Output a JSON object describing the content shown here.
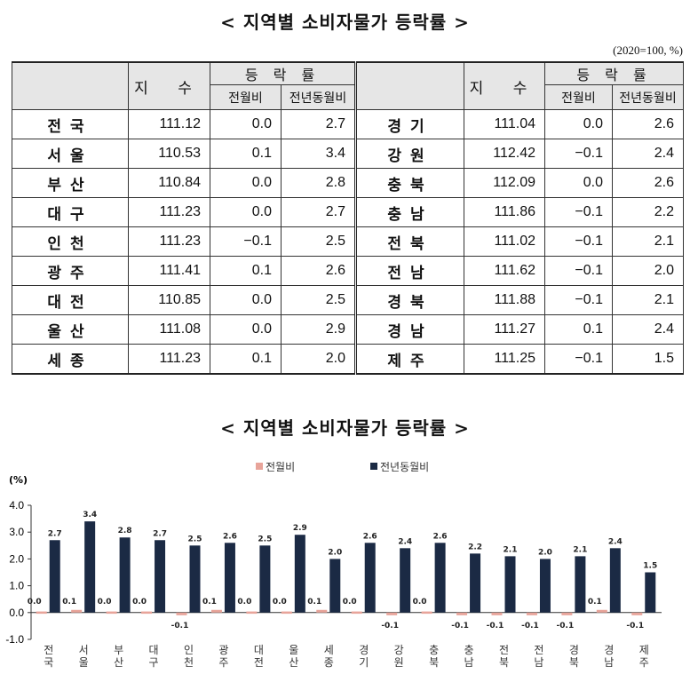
{
  "table_title": "< 지역별 소비자물가 등락률 >",
  "unit_note": "(2020=100, %)",
  "headers": {
    "index": "지 수",
    "change": "등 락 률",
    "mom": "전월비",
    "yoy": "전년동월비"
  },
  "left_rows": [
    {
      "region": "전국",
      "index": "111.12",
      "mom": "0.0",
      "yoy": "2.7"
    },
    {
      "region": "서울",
      "index": "110.53",
      "mom": "0.1",
      "yoy": "3.4"
    },
    {
      "region": "부산",
      "index": "110.84",
      "mom": "0.0",
      "yoy": "2.8"
    },
    {
      "region": "대구",
      "index": "111.23",
      "mom": "0.0",
      "yoy": "2.7"
    },
    {
      "region": "인천",
      "index": "111.23",
      "mom": "−0.1",
      "yoy": "2.5"
    },
    {
      "region": "광주",
      "index": "111.41",
      "mom": "0.1",
      "yoy": "2.6"
    },
    {
      "region": "대전",
      "index": "110.85",
      "mom": "0.0",
      "yoy": "2.5"
    },
    {
      "region": "울산",
      "index": "111.08",
      "mom": "0.0",
      "yoy": "2.9"
    },
    {
      "region": "세종",
      "index": "111.23",
      "mom": "0.1",
      "yoy": "2.0"
    }
  ],
  "right_rows": [
    {
      "region": "경기",
      "index": "111.04",
      "mom": "0.0",
      "yoy": "2.6"
    },
    {
      "region": "강원",
      "index": "112.42",
      "mom": "−0.1",
      "yoy": "2.4"
    },
    {
      "region": "충북",
      "index": "112.09",
      "mom": "0.0",
      "yoy": "2.6"
    },
    {
      "region": "충남",
      "index": "111.86",
      "mom": "−0.1",
      "yoy": "2.2"
    },
    {
      "region": "전북",
      "index": "111.02",
      "mom": "−0.1",
      "yoy": "2.1"
    },
    {
      "region": "전남",
      "index": "111.62",
      "mom": "−0.1",
      "yoy": "2.0"
    },
    {
      "region": "경북",
      "index": "111.88",
      "mom": "−0.1",
      "yoy": "2.1"
    },
    {
      "region": "경남",
      "index": "111.27",
      "mom": "0.1",
      "yoy": "2.4"
    },
    {
      "region": "제주",
      "index": "111.25",
      "mom": "−0.1",
      "yoy": "1.5"
    }
  ],
  "chart_title": "< 지역별 소비자물가 등락률 >",
  "chart_data": {
    "type": "bar",
    "ylabel": "(%)",
    "ylim": [
      -1.0,
      4.0
    ],
    "yticks": [
      "4.0",
      "3.0",
      "2.0",
      "1.0",
      "0.0",
      "-1.0"
    ],
    "grid": false,
    "legend_position": "top-center",
    "categories": [
      "전국",
      "서울",
      "부산",
      "대구",
      "인천",
      "광주",
      "대전",
      "울산",
      "세종",
      "경기",
      "강원",
      "충북",
      "충남",
      "전북",
      "전남",
      "경북",
      "경남",
      "제주"
    ],
    "series": [
      {
        "name": "전월비",
        "color": "#e8a49a",
        "values": [
          0.0,
          0.1,
          0.0,
          0.0,
          -0.1,
          0.1,
          0.0,
          0.0,
          0.1,
          0.0,
          -0.1,
          0.0,
          -0.1,
          -0.1,
          -0.1,
          -0.1,
          0.1,
          -0.1
        ],
        "labels": [
          "0.0",
          "0.1",
          "0.0",
          "0.0",
          "-0.1",
          "0.1",
          "0.0",
          "0.0",
          "0.1",
          "0.0",
          "-0.1",
          "0.0",
          "-0.1",
          "-0.1",
          "-0.1",
          "-0.1",
          "0.1",
          "-0.1"
        ]
      },
      {
        "name": "전년동월비",
        "color": "#1b2a44",
        "values": [
          2.7,
          3.4,
          2.8,
          2.7,
          2.5,
          2.6,
          2.5,
          2.9,
          2.0,
          2.6,
          2.4,
          2.6,
          2.2,
          2.1,
          2.0,
          2.1,
          2.4,
          1.5
        ],
        "labels": [
          "2.7",
          "3.4",
          "2.8",
          "2.7",
          "2.5",
          "2.6",
          "2.5",
          "2.9",
          "2.0",
          "2.6",
          "2.4",
          "2.6",
          "2.2",
          "2.1",
          "2.0",
          "2.1",
          "2.4",
          "1.5"
        ]
      }
    ]
  }
}
